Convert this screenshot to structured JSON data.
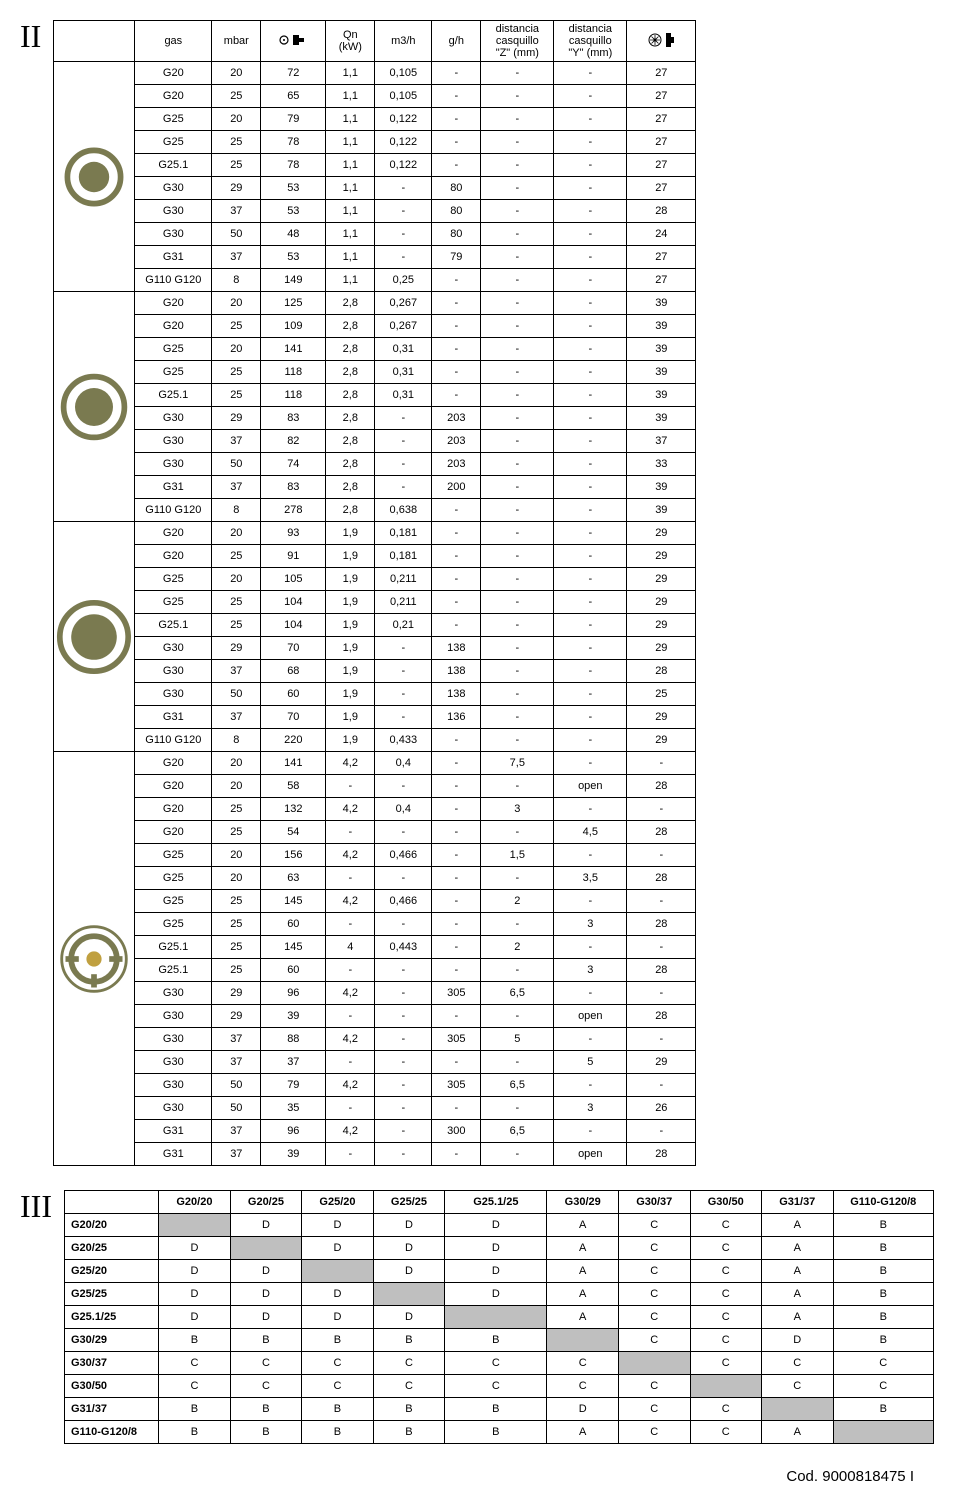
{
  "roman1": "II",
  "roman2": "III",
  "footer": "Cod. 9000818475 I",
  "t1_headers": {
    "gas": "gas",
    "mbar": "mbar",
    "inj": "",
    "qn": "Qn (kW)",
    "m3h": "m3/h",
    "gh": "g/h",
    "z": "distancia casquillo \"Z\" (mm)",
    "y": "distancia casquillo \"Y\" (mm)",
    "sym": ""
  },
  "groups": [
    {
      "burner": {
        "type": "single",
        "r": 28
      },
      "rows": [
        [
          "G20",
          "20",
          "72",
          "1,1",
          "0,105",
          "-",
          "-",
          "-",
          "27"
        ],
        [
          "G20",
          "25",
          "65",
          "1,1",
          "0,105",
          "-",
          "-",
          "-",
          "27"
        ],
        [
          "G25",
          "20",
          "79",
          "1,1",
          "0,122",
          "-",
          "-",
          "-",
          "27"
        ],
        [
          "G25",
          "25",
          "78",
          "1,1",
          "0,122",
          "-",
          "-",
          "-",
          "27"
        ],
        [
          "G25.1",
          "25",
          "78",
          "1,1",
          "0,122",
          "-",
          "-",
          "-",
          "27"
        ],
        [
          "G30",
          "29",
          "53",
          "1,1",
          "-",
          "80",
          "-",
          "-",
          "27"
        ],
        [
          "G30",
          "37",
          "53",
          "1,1",
          "-",
          "80",
          "-",
          "-",
          "28"
        ],
        [
          "G30",
          "50",
          "48",
          "1,1",
          "-",
          "80",
          "-",
          "-",
          "24"
        ],
        [
          "G31",
          "37",
          "53",
          "1,1",
          "-",
          "79",
          "-",
          "-",
          "27"
        ],
        [
          "G110 G120",
          "8",
          "149",
          "1,1",
          "0,25",
          "-",
          "-",
          "-",
          "27"
        ]
      ]
    },
    {
      "burner": {
        "type": "single",
        "r": 32
      },
      "rows": [
        [
          "G20",
          "20",
          "125",
          "2,8",
          "0,267",
          "-",
          "-",
          "-",
          "39"
        ],
        [
          "G20",
          "25",
          "109",
          "2,8",
          "0,267",
          "-",
          "-",
          "-",
          "39"
        ],
        [
          "G25",
          "20",
          "141",
          "2,8",
          "0,31",
          "-",
          "-",
          "-",
          "39"
        ],
        [
          "G25",
          "25",
          "118",
          "2,8",
          "0,31",
          "-",
          "-",
          "-",
          "39"
        ],
        [
          "G25.1",
          "25",
          "118",
          "2,8",
          "0,31",
          "-",
          "-",
          "-",
          "39"
        ],
        [
          "G30",
          "29",
          "83",
          "2,8",
          "-",
          "203",
          "-",
          "-",
          "39"
        ],
        [
          "G30",
          "37",
          "82",
          "2,8",
          "-",
          "203",
          "-",
          "-",
          "37"
        ],
        [
          "G30",
          "50",
          "74",
          "2,8",
          "-",
          "203",
          "-",
          "-",
          "33"
        ],
        [
          "G31",
          "37",
          "83",
          "2,8",
          "-",
          "200",
          "-",
          "-",
          "39"
        ],
        [
          "G110 G120",
          "8",
          "278",
          "2,8",
          "0,638",
          "-",
          "-",
          "-",
          "39"
        ]
      ]
    },
    {
      "burner": {
        "type": "single",
        "r": 36
      },
      "rows": [
        [
          "G20",
          "20",
          "93",
          "1,9",
          "0,181",
          "-",
          "-",
          "-",
          "29"
        ],
        [
          "G20",
          "25",
          "91",
          "1,9",
          "0,181",
          "-",
          "-",
          "-",
          "29"
        ],
        [
          "G25",
          "20",
          "105",
          "1,9",
          "0,211",
          "-",
          "-",
          "-",
          "29"
        ],
        [
          "G25",
          "25",
          "104",
          "1,9",
          "0,211",
          "-",
          "-",
          "-",
          "29"
        ],
        [
          "G25.1",
          "25",
          "104",
          "1,9",
          "0,21",
          "-",
          "-",
          "-",
          "29"
        ],
        [
          "G30",
          "29",
          "70",
          "1,9",
          "-",
          "138",
          "-",
          "-",
          "29"
        ],
        [
          "G30",
          "37",
          "68",
          "1,9",
          "-",
          "138",
          "-",
          "-",
          "28"
        ],
        [
          "G30",
          "50",
          "60",
          "1,9",
          "-",
          "138",
          "-",
          "-",
          "25"
        ],
        [
          "G31",
          "37",
          "70",
          "1,9",
          "-",
          "136",
          "-",
          "-",
          "29"
        ],
        [
          "G110 G120",
          "8",
          "220",
          "1,9",
          "0,433",
          "-",
          "-",
          "-",
          "29"
        ]
      ]
    },
    {
      "burner": {
        "type": "triple"
      },
      "rows": [
        [
          "G20",
          "20",
          "141",
          "4,2",
          "0,4",
          "-",
          "7,5",
          "-",
          "-"
        ],
        [
          "G20",
          "20",
          "58",
          "-",
          "-",
          "-",
          "-",
          "open",
          "28"
        ],
        [
          "G20",
          "25",
          "132",
          "4,2",
          "0,4",
          "-",
          "3",
          "-",
          "-"
        ],
        [
          "G20",
          "25",
          "54",
          "-",
          "-",
          "-",
          "-",
          "4,5",
          "28"
        ],
        [
          "G25",
          "20",
          "156",
          "4,2",
          "0,466",
          "-",
          "1,5",
          "-",
          "-"
        ],
        [
          "G25",
          "20",
          "63",
          "-",
          "-",
          "-",
          "-",
          "3,5",
          "28"
        ],
        [
          "G25",
          "25",
          "145",
          "4,2",
          "0,466",
          "-",
          "2",
          "-",
          "-"
        ],
        [
          "G25",
          "25",
          "60",
          "-",
          "-",
          "-",
          "-",
          "3",
          "28"
        ],
        [
          "G25.1",
          "25",
          "145",
          "4",
          "0,443",
          "-",
          "2",
          "-",
          "-"
        ],
        [
          "G25.1",
          "25",
          "60",
          "-",
          "-",
          "-",
          "-",
          "3",
          "28"
        ],
        [
          "G30",
          "29",
          "96",
          "4,2",
          "-",
          "305",
          "6,5",
          "-",
          "-"
        ],
        [
          "G30",
          "29",
          "39",
          "-",
          "-",
          "-",
          "-",
          "open",
          "28"
        ],
        [
          "G30",
          "37",
          "88",
          "4,2",
          "-",
          "305",
          "5",
          "-",
          "-"
        ],
        [
          "G30",
          "37",
          "37",
          "-",
          "-",
          "-",
          "-",
          "5",
          "29"
        ],
        [
          "G30",
          "50",
          "79",
          "4,2",
          "-",
          "305",
          "6,5",
          "-",
          "-"
        ],
        [
          "G30",
          "50",
          "35",
          "-",
          "-",
          "-",
          "-",
          "3",
          "26"
        ],
        [
          "G31",
          "37",
          "96",
          "4,2",
          "-",
          "300",
          "6,5",
          "-",
          "-"
        ],
        [
          "G31",
          "37",
          "39",
          "-",
          "-",
          "-",
          "-",
          "open",
          "28"
        ]
      ]
    }
  ],
  "t3_headers": [
    "G20/20",
    "G20/25",
    "G25/20",
    "G25/25",
    "G25.1/25",
    "G30/29",
    "G30/37",
    "G30/50",
    "G31/37",
    "G110-G120/8"
  ],
  "t3_rows": [
    {
      "label": "G20/20",
      "cells": [
        "",
        "D",
        "D",
        "D",
        "D",
        "A",
        "C",
        "C",
        "A",
        "B"
      ],
      "shade": 0
    },
    {
      "label": "G20/25",
      "cells": [
        "D",
        "",
        "D",
        "D",
        "D",
        "A",
        "C",
        "C",
        "A",
        "B"
      ],
      "shade": 1
    },
    {
      "label": "G25/20",
      "cells": [
        "D",
        "D",
        "",
        "D",
        "D",
        "A",
        "C",
        "C",
        "A",
        "B"
      ],
      "shade": 2
    },
    {
      "label": "G25/25",
      "cells": [
        "D",
        "D",
        "D",
        "",
        "D",
        "A",
        "C",
        "C",
        "A",
        "B"
      ],
      "shade": 3
    },
    {
      "label": "G25.1/25",
      "cells": [
        "D",
        "D",
        "D",
        "D",
        "",
        "A",
        "C",
        "C",
        "A",
        "B"
      ],
      "shade": 4
    },
    {
      "label": "G30/29",
      "cells": [
        "B",
        "B",
        "B",
        "B",
        "B",
        "",
        "C",
        "C",
        "D",
        "B"
      ],
      "shade": 5
    },
    {
      "label": "G30/37",
      "cells": [
        "C",
        "C",
        "C",
        "C",
        "C",
        "C",
        "",
        "C",
        "C",
        "C"
      ],
      "shade": 6
    },
    {
      "label": "G30/50",
      "cells": [
        "C",
        "C",
        "C",
        "C",
        "C",
        "C",
        "C",
        "",
        "C",
        "C"
      ],
      "shade": 7
    },
    {
      "label": "G31/37",
      "cells": [
        "B",
        "B",
        "B",
        "B",
        "B",
        "D",
        "C",
        "C",
        "",
        "B"
      ],
      "shade": 8
    },
    {
      "label": "G110-G120/8",
      "cells": [
        "B",
        "B",
        "B",
        "B",
        "B",
        "A",
        "C",
        "C",
        "A",
        ""
      ],
      "shade": 9
    }
  ]
}
